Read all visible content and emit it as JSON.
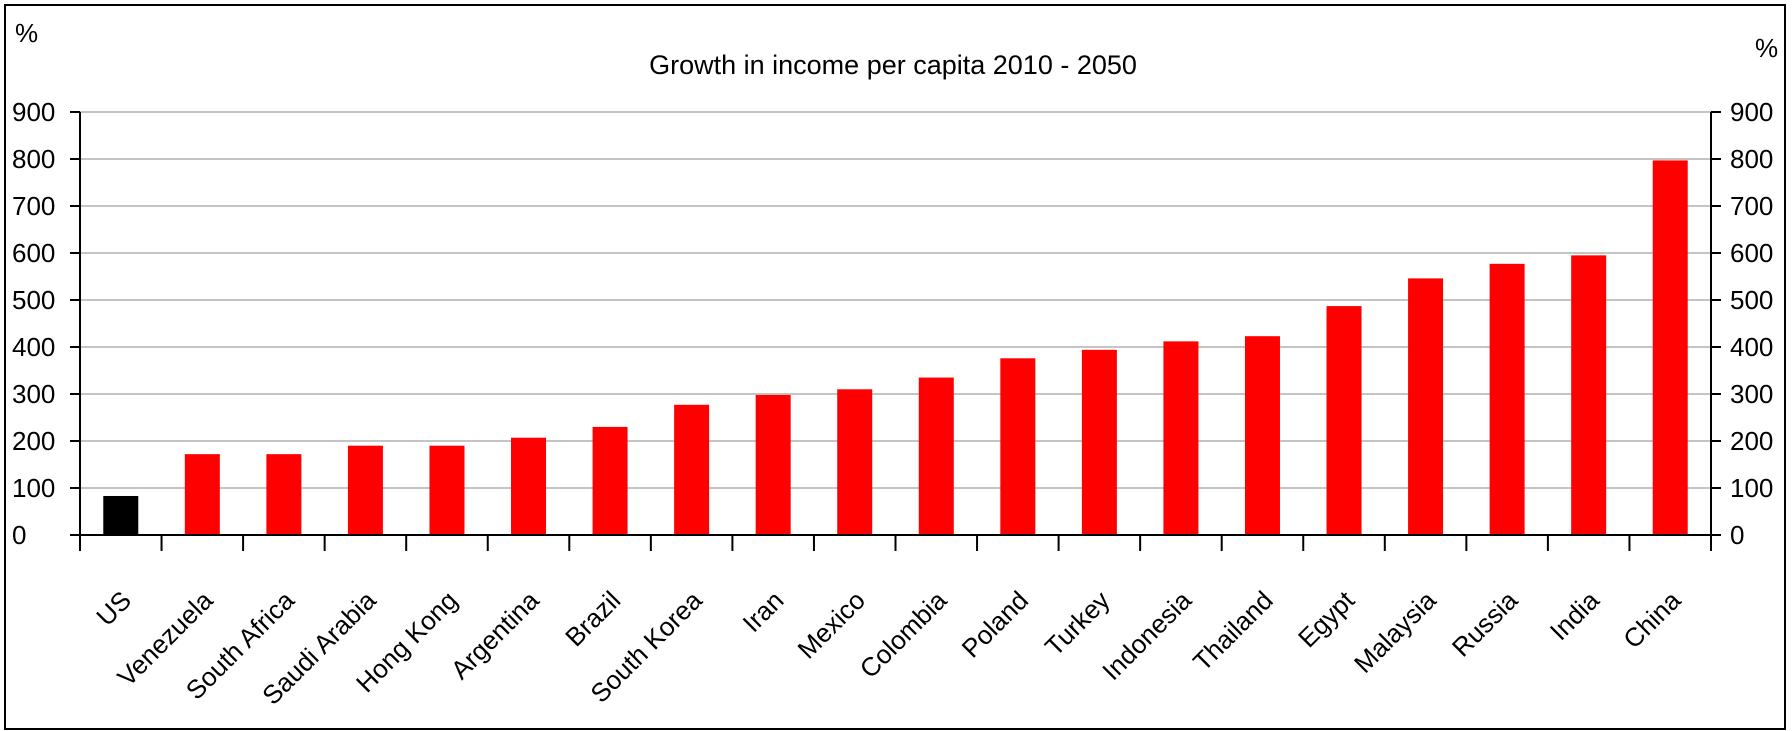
{
  "chart_data": {
    "type": "bar",
    "title": "Growth in income per capita 2010 - 2050",
    "y_unit_left": "%",
    "y_unit_right": "%",
    "ylim": [
      0,
      900
    ],
    "yticks": [
      0,
      100,
      200,
      300,
      400,
      500,
      600,
      700,
      800,
      900
    ],
    "grid": true,
    "categories": [
      "US",
      "Venezuela",
      "South Africa",
      "Saudi Arabia",
      "Hong Kong",
      "Argentina",
      "Brazil",
      "South Korea",
      "Iran",
      "Mexico",
      "Colombia",
      "Poland",
      "Turkey",
      "Indonesia",
      "Thailand",
      "Egypt",
      "Malaysia",
      "Russia",
      "India",
      "China"
    ],
    "values": [
      83,
      172,
      172,
      190,
      190,
      207,
      230,
      277,
      298,
      310,
      335,
      376,
      394,
      412,
      423,
      487,
      546,
      577,
      595,
      797
    ],
    "colors": [
      "#000000",
      "#ff0000",
      "#ff0000",
      "#ff0000",
      "#ff0000",
      "#ff0000",
      "#ff0000",
      "#ff0000",
      "#ff0000",
      "#ff0000",
      "#ff0000",
      "#ff0000",
      "#ff0000",
      "#ff0000",
      "#ff0000",
      "#ff0000",
      "#ff0000",
      "#ff0000",
      "#ff0000",
      "#ff0000"
    ]
  }
}
